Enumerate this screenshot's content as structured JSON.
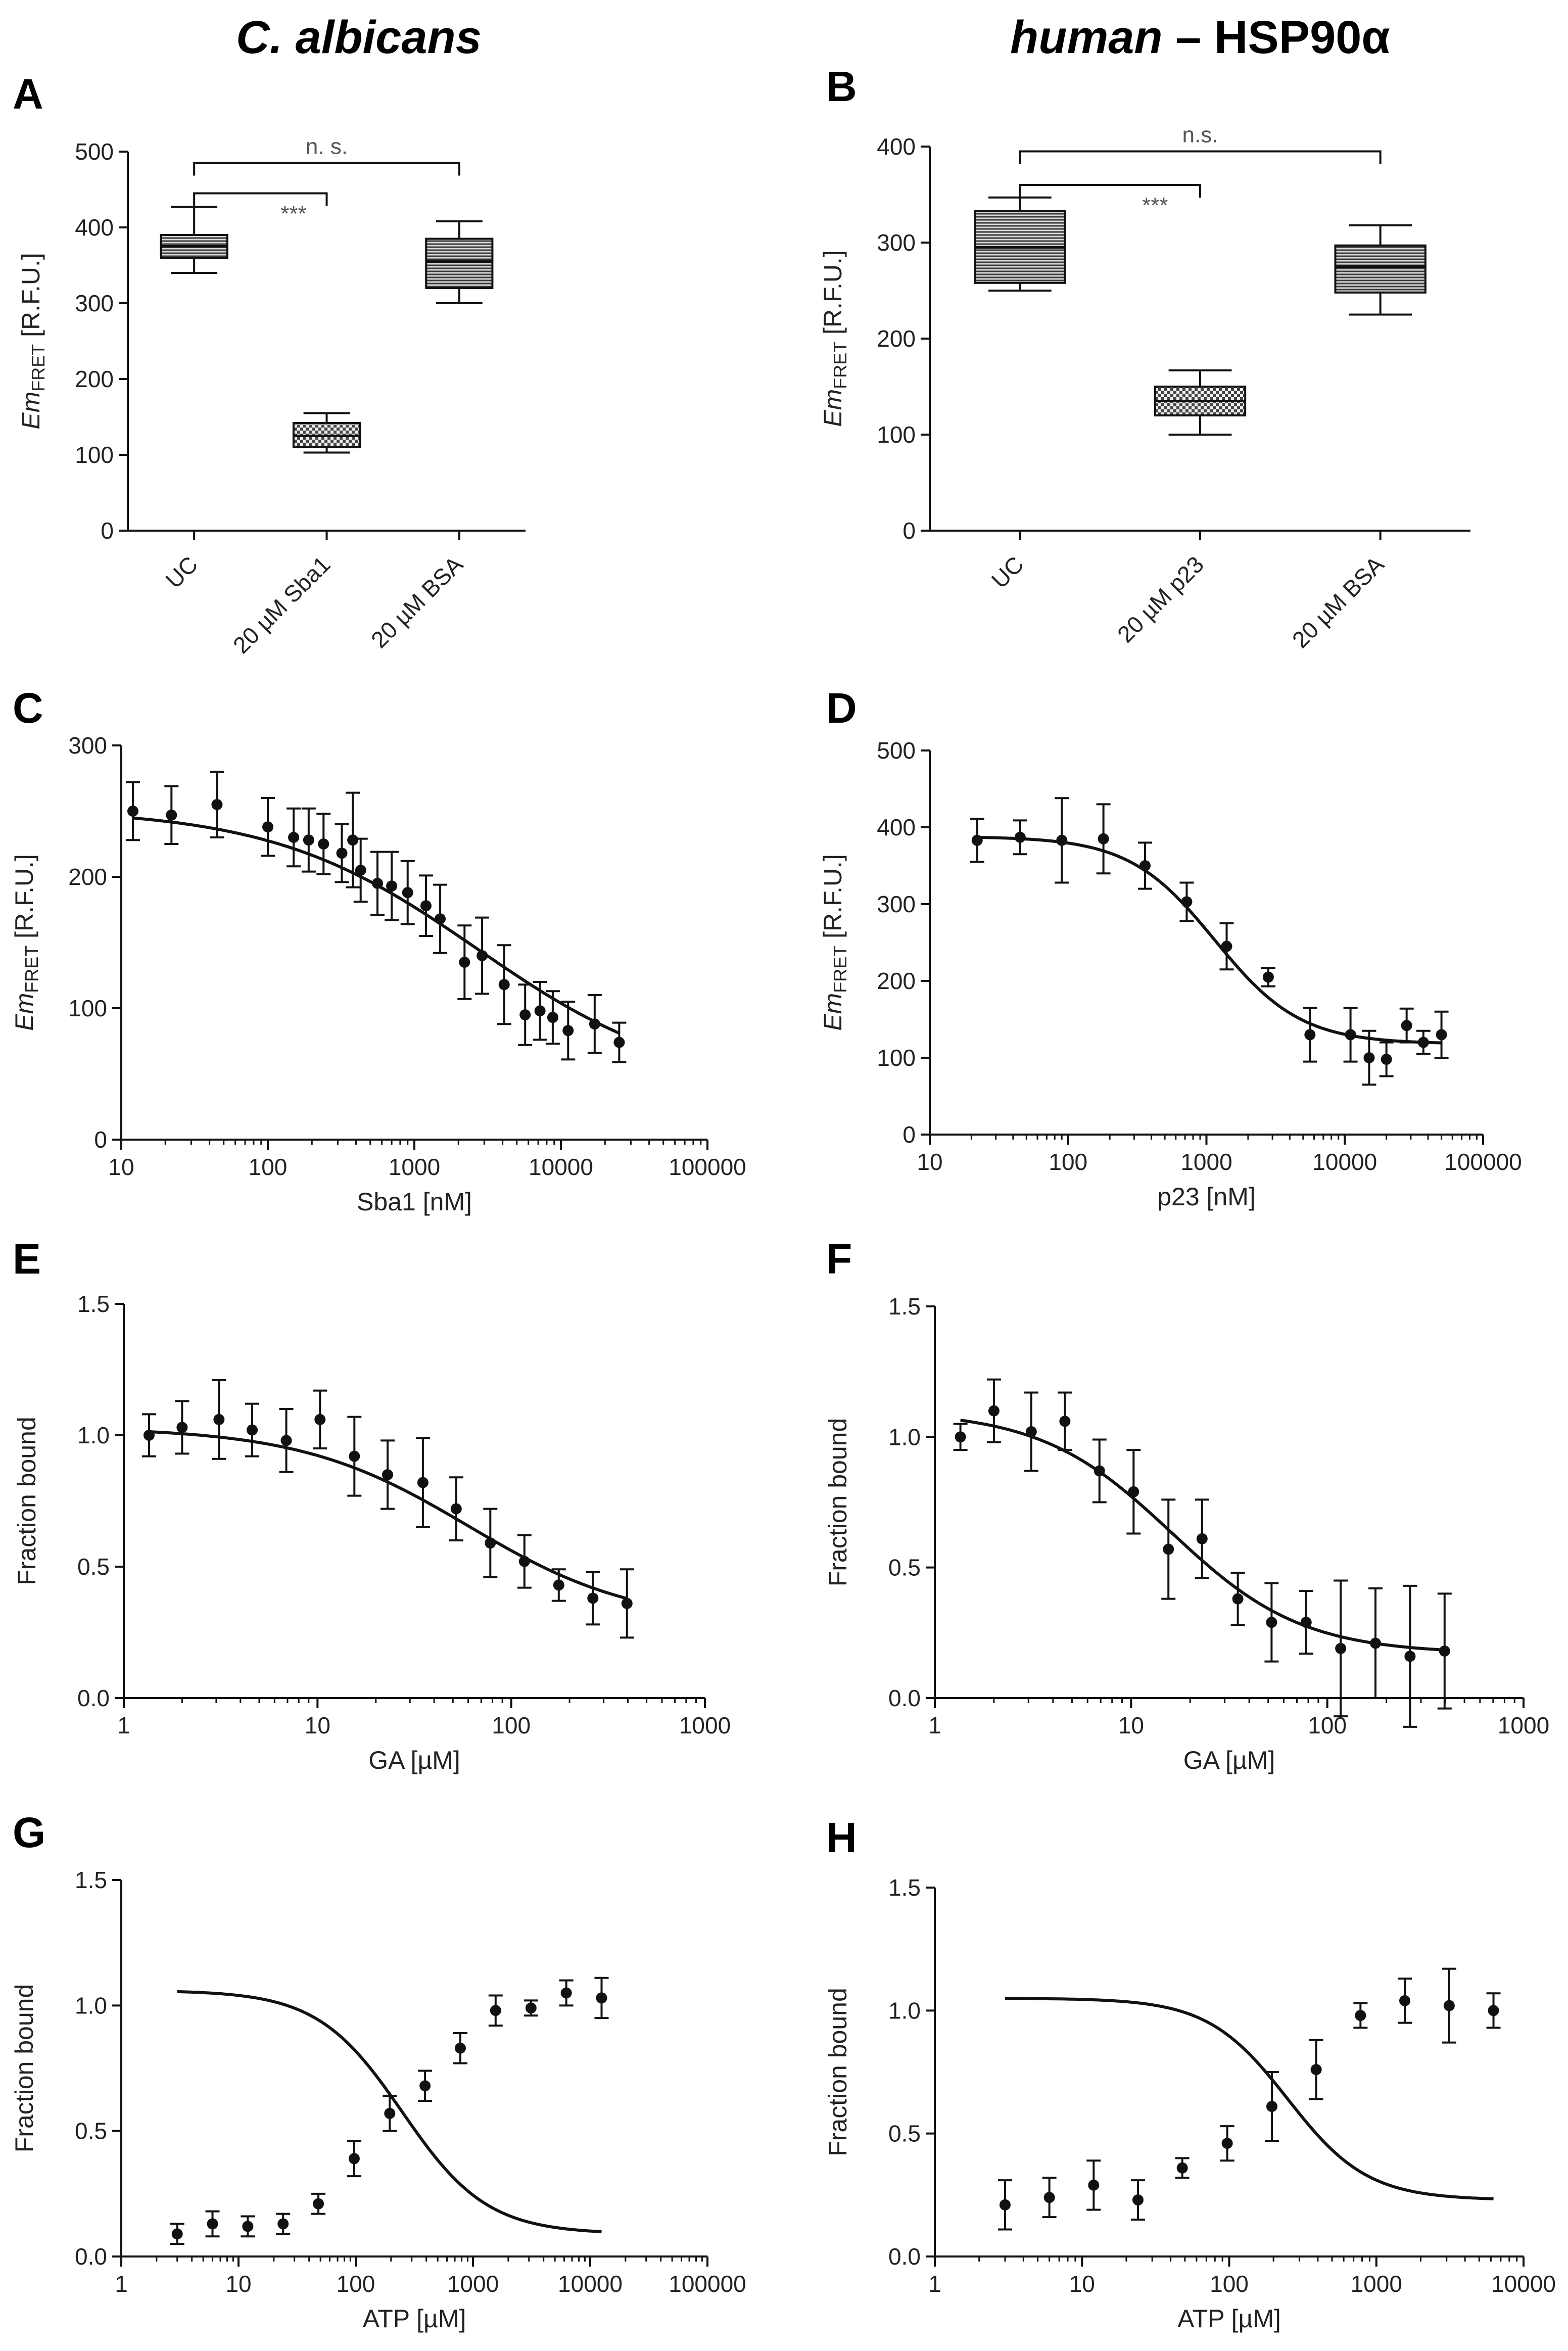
{
  "figure": {
    "columns": [
      {
        "title_italic": "C. albicans",
        "title_rest": ""
      },
      {
        "title_italic": "human",
        "title_rest": " – HSP90α"
      }
    ]
  },
  "chart_data": [
    {
      "panel": "A",
      "type": "box",
      "ylabel": "EmFRET [R.F.U.]",
      "ylabel_main": "Em",
      "ylabel_sub": "FRET",
      "ylabel_rest": " [R.F.U.]",
      "ylim": [
        0,
        500
      ],
      "yticks": [
        0,
        100,
        200,
        300,
        400,
        500
      ],
      "categories": [
        "UC",
        "20 µM Sba1",
        "20 µM BSA"
      ],
      "boxes": [
        {
          "min": 340,
          "q1": 360,
          "median": 375,
          "q3": 390,
          "max": 427,
          "fill": "lines"
        },
        {
          "min": 103,
          "q1": 110,
          "median": 125,
          "q3": 142,
          "max": 155,
          "fill": "checker"
        },
        {
          "min": 300,
          "q1": 320,
          "median": 355,
          "q3": 385,
          "max": 408,
          "fill": "lines"
        }
      ],
      "brackets": [
        {
          "from": 0,
          "to": 2,
          "y": 485,
          "label": "n. s."
        },
        {
          "from": 0,
          "to": 1,
          "y": 445,
          "label": "***"
        }
      ]
    },
    {
      "panel": "B",
      "type": "box",
      "ylabel": "EmFRET [R.F.U.]",
      "ylabel_main": "Em",
      "ylabel_sub": "FRET",
      "ylabel_rest": " [R.F.U.]",
      "ylim": [
        0,
        400
      ],
      "yticks": [
        0,
        100,
        200,
        300,
        400
      ],
      "categories": [
        "UC",
        "20 µM p23",
        "20 µM BSA"
      ],
      "boxes": [
        {
          "min": 250,
          "q1": 258,
          "median": 295,
          "q3": 333,
          "max": 347,
          "fill": "lines"
        },
        {
          "min": 100,
          "q1": 120,
          "median": 135,
          "q3": 150,
          "max": 167,
          "fill": "checker"
        },
        {
          "min": 225,
          "q1": 248,
          "median": 275,
          "q3": 297,
          "max": 318,
          "fill": "lines"
        }
      ],
      "brackets": [
        {
          "from": 0,
          "to": 2,
          "y": 395,
          "label": "n.s."
        },
        {
          "from": 0,
          "to": 1,
          "y": 360,
          "label": "***"
        }
      ]
    },
    {
      "panel": "C",
      "type": "scatter",
      "xlabel": "Sba1 [nM]",
      "xscale": "log",
      "xlim": [
        10,
        100000
      ],
      "xticks": [
        10,
        100,
        1000,
        10000,
        100000
      ],
      "ylabel": "EmFRET [R.F.U.]",
      "ylabel_main": "Em",
      "ylabel_sub": "FRET",
      "ylabel_rest": " [R.F.U.]",
      "ylim": [
        0,
        300
      ],
      "yticks": [
        0,
        100,
        200,
        300
      ],
      "points": [
        {
          "x": 12,
          "y": 250,
          "err": 22
        },
        {
          "x": 22,
          "y": 247,
          "err": 22
        },
        {
          "x": 45,
          "y": 255,
          "err": 25
        },
        {
          "x": 100,
          "y": 238,
          "err": 22
        },
        {
          "x": 150,
          "y": 230,
          "err": 22
        },
        {
          "x": 190,
          "y": 228,
          "err": 24
        },
        {
          "x": 240,
          "y": 225,
          "err": 23
        },
        {
          "x": 320,
          "y": 218,
          "err": 22
        },
        {
          "x": 380,
          "y": 228,
          "err": 36
        },
        {
          "x": 430,
          "y": 205,
          "err": 24
        },
        {
          "x": 560,
          "y": 195,
          "err": 24
        },
        {
          "x": 700,
          "y": 193,
          "err": 26
        },
        {
          "x": 900,
          "y": 188,
          "err": 24
        },
        {
          "x": 1200,
          "y": 178,
          "err": 23
        },
        {
          "x": 1500,
          "y": 168,
          "err": 26
        },
        {
          "x": 2200,
          "y": 135,
          "err": 28
        },
        {
          "x": 2900,
          "y": 140,
          "err": 29
        },
        {
          "x": 4100,
          "y": 118,
          "err": 30
        },
        {
          "x": 5700,
          "y": 95,
          "err": 23
        },
        {
          "x": 7200,
          "y": 98,
          "err": 22
        },
        {
          "x": 8800,
          "y": 93,
          "err": 20
        },
        {
          "x": 11200,
          "y": 83,
          "err": 22
        },
        {
          "x": 17000,
          "y": 88,
          "err": 22
        },
        {
          "x": 25000,
          "y": 74,
          "err": 15
        }
      ],
      "fit": {
        "top": 252,
        "bottom": 38,
        "ec50": 2700,
        "hill": 0.62
      }
    },
    {
      "panel": "D",
      "type": "scatter",
      "xlabel": "p23 [nM]",
      "xscale": "log",
      "xlim": [
        10,
        100000
      ],
      "xticks": [
        10,
        100,
        1000,
        10000,
        100000
      ],
      "ylabel": "EmFRET [R.F.U.]",
      "ylabel_main": "Em",
      "ylabel_sub": "FRET",
      "ylabel_rest": " [R.F.U.]",
      "ylim": [
        0,
        500
      ],
      "yticks": [
        0,
        100,
        200,
        300,
        400,
        500
      ],
      "points": [
        {
          "x": 22,
          "y": 383,
          "err": 28
        },
        {
          "x": 45,
          "y": 387,
          "err": 22
        },
        {
          "x": 90,
          "y": 383,
          "err": 55
        },
        {
          "x": 180,
          "y": 385,
          "err": 45
        },
        {
          "x": 360,
          "y": 350,
          "err": 30
        },
        {
          "x": 720,
          "y": 303,
          "err": 25
        },
        {
          "x": 1400,
          "y": 245,
          "err": 30
        },
        {
          "x": 2800,
          "y": 205,
          "err": 12
        },
        {
          "x": 5600,
          "y": 130,
          "err": 35
        },
        {
          "x": 11000,
          "y": 130,
          "err": 35
        },
        {
          "x": 15000,
          "y": 100,
          "err": 35
        },
        {
          "x": 20000,
          "y": 98,
          "err": 22
        },
        {
          "x": 28000,
          "y": 142,
          "err": 22
        },
        {
          "x": 37000,
          "y": 120,
          "err": 15
        },
        {
          "x": 50000,
          "y": 130,
          "err": 30
        }
      ],
      "fit": {
        "top": 388,
        "bottom": 118,
        "ec50": 1150,
        "hill": 1.4
      }
    },
    {
      "panel": "E",
      "type": "scatter",
      "xlabel": "GA [µM]",
      "xscale": "log",
      "xlim": [
        1,
        1000
      ],
      "xticks": [
        1,
        10,
        100,
        1000
      ],
      "ylabel": "Fraction bound",
      "ylim": [
        0,
        1.5
      ],
      "yticks": [
        0.0,
        0.5,
        1.0,
        1.5
      ],
      "ytick_format": "1dp",
      "points": [
        {
          "x": 1.35,
          "y": 1.0,
          "err": 0.08
        },
        {
          "x": 2.0,
          "y": 1.03,
          "err": 0.1
        },
        {
          "x": 3.1,
          "y": 1.06,
          "err": 0.15
        },
        {
          "x": 4.6,
          "y": 1.02,
          "err": 0.1
        },
        {
          "x": 6.9,
          "y": 0.98,
          "err": 0.12
        },
        {
          "x": 10.3,
          "y": 1.06,
          "err": 0.11
        },
        {
          "x": 15.5,
          "y": 0.92,
          "err": 0.15
        },
        {
          "x": 23,
          "y": 0.85,
          "err": 0.13
        },
        {
          "x": 35,
          "y": 0.82,
          "err": 0.17
        },
        {
          "x": 52,
          "y": 0.72,
          "err": 0.12
        },
        {
          "x": 78,
          "y": 0.59,
          "err": 0.13
        },
        {
          "x": 117,
          "y": 0.52,
          "err": 0.1
        },
        {
          "x": 176,
          "y": 0.43,
          "err": 0.06
        },
        {
          "x": 264,
          "y": 0.38,
          "err": 0.1
        },
        {
          "x": 396,
          "y": 0.36,
          "err": 0.13
        }
      ],
      "fit": {
        "top": 1.03,
        "bottom": 0.28,
        "ec50": 60,
        "hill": 1.0
      }
    },
    {
      "panel": "F",
      "type": "scatter",
      "xlabel": "GA [µM]",
      "xscale": "log",
      "xlim": [
        1,
        1000
      ],
      "xticks": [
        1,
        10,
        100,
        1000
      ],
      "ylabel": "Fraction bound",
      "ylim": [
        0,
        1.5
      ],
      "yticks": [
        0.0,
        0.5,
        1.0,
        1.5
      ],
      "ytick_format": "1dp",
      "points": [
        {
          "x": 1.35,
          "y": 1.0,
          "err": 0.05
        },
        {
          "x": 2.0,
          "y": 1.1,
          "err": 0.12
        },
        {
          "x": 3.1,
          "y": 1.02,
          "err": 0.15
        },
        {
          "x": 4.6,
          "y": 1.06,
          "err": 0.11
        },
        {
          "x": 6.9,
          "y": 0.87,
          "err": 0.12
        },
        {
          "x": 10.3,
          "y": 0.79,
          "err": 0.16
        },
        {
          "x": 15.5,
          "y": 0.57,
          "err": 0.19
        },
        {
          "x": 23,
          "y": 0.61,
          "err": 0.15
        },
        {
          "x": 35,
          "y": 0.38,
          "err": 0.1
        },
        {
          "x": 52,
          "y": 0.29,
          "err": 0.15
        },
        {
          "x": 78,
          "y": 0.29,
          "err": 0.12
        },
        {
          "x": 117,
          "y": 0.19,
          "err": 0.26
        },
        {
          "x": 176,
          "y": 0.21,
          "err": 0.21
        },
        {
          "x": 264,
          "y": 0.16,
          "err": 0.27
        },
        {
          "x": 396,
          "y": 0.18,
          "err": 0.22
        }
      ],
      "fit": {
        "top": 1.1,
        "bottom": 0.17,
        "ec50": 16,
        "hill": 1.3
      }
    },
    {
      "panel": "G",
      "type": "scatter",
      "xlabel": "ATP [µM]",
      "xscale": "log",
      "xlim": [
        1,
        100000
      ],
      "xticks": [
        1,
        10,
        100,
        1000,
        10000,
        100000
      ],
      "ylabel": "Fraction bound",
      "ylim": [
        0,
        1.5
      ],
      "yticks": [
        0.0,
        0.5,
        1.0,
        1.5
      ],
      "ytick_format": "1dp",
      "points": [
        {
          "x": 3,
          "y": 0.09,
          "err": 0.04
        },
        {
          "x": 6,
          "y": 0.13,
          "err": 0.05
        },
        {
          "x": 12,
          "y": 0.12,
          "err": 0.04
        },
        {
          "x": 24,
          "y": 0.13,
          "err": 0.04
        },
        {
          "x": 48,
          "y": 0.21,
          "err": 0.04
        },
        {
          "x": 97,
          "y": 0.39,
          "err": 0.07
        },
        {
          "x": 195,
          "y": 0.57,
          "err": 0.07
        },
        {
          "x": 390,
          "y": 0.68,
          "err": 0.06
        },
        {
          "x": 780,
          "y": 0.83,
          "err": 0.06
        },
        {
          "x": 1560,
          "y": 0.98,
          "err": 0.06
        },
        {
          "x": 3125,
          "y": 0.99,
          "err": 0.03
        },
        {
          "x": 6250,
          "y": 1.05,
          "err": 0.05
        },
        {
          "x": 12500,
          "y": 1.03,
          "err": 0.08
        }
      ],
      "fit": {
        "top": 1.06,
        "bottom": 0.09,
        "ec50": 250,
        "hill": 1.2
      }
    },
    {
      "panel": "H",
      "type": "scatter",
      "xlabel": "ATP [µM]",
      "xscale": "log",
      "xlim": [
        1,
        10000
      ],
      "xticks": [
        1,
        10,
        100,
        1000,
        10000
      ],
      "ylabel": "Fraction bound",
      "ylim": [
        0,
        1.5
      ],
      "yticks": [
        0.0,
        0.5,
        1.0,
        1.5
      ],
      "ytick_format": "1dp",
      "points": [
        {
          "x": 3,
          "y": 0.21,
          "err": 0.1
        },
        {
          "x": 6,
          "y": 0.24,
          "err": 0.08
        },
        {
          "x": 12,
          "y": 0.29,
          "err": 0.1
        },
        {
          "x": 24,
          "y": 0.23,
          "err": 0.08
        },
        {
          "x": 48,
          "y": 0.36,
          "err": 0.04
        },
        {
          "x": 97,
          "y": 0.46,
          "err": 0.07
        },
        {
          "x": 195,
          "y": 0.61,
          "err": 0.14
        },
        {
          "x": 390,
          "y": 0.76,
          "err": 0.12
        },
        {
          "x": 780,
          "y": 0.98,
          "err": 0.05
        },
        {
          "x": 1560,
          "y": 1.04,
          "err": 0.09
        },
        {
          "x": 3125,
          "y": 1.02,
          "err": 0.15
        },
        {
          "x": 6250,
          "y": 1.0,
          "err": 0.07
        }
      ],
      "fit": {
        "top": 1.05,
        "bottom": 0.23,
        "ec50": 250,
        "hill": 1.6
      }
    }
  ]
}
